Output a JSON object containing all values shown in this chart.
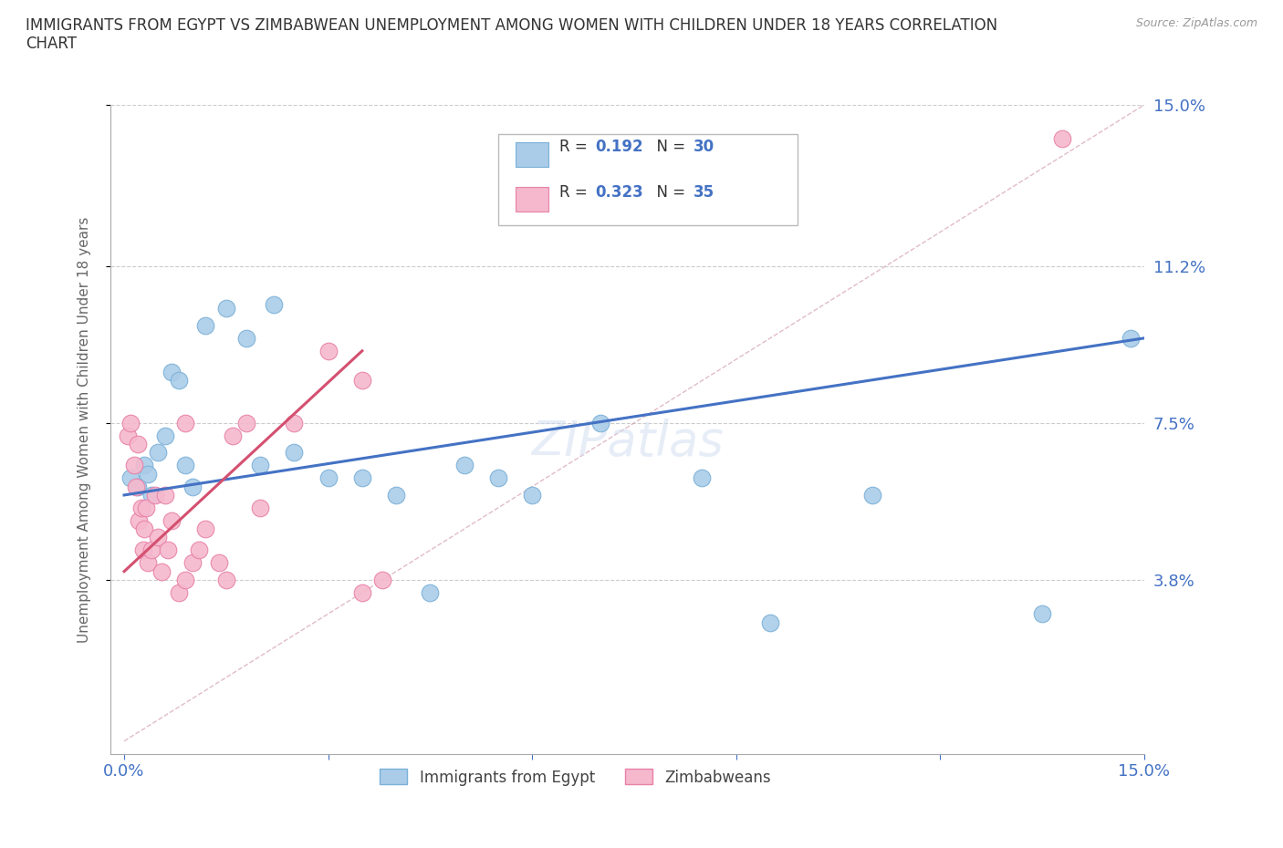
{
  "title": "IMMIGRANTS FROM EGYPT VS ZIMBABWEAN UNEMPLOYMENT AMONG WOMEN WITH CHILDREN UNDER 18 YEARS CORRELATION\nCHART",
  "source": "Source: ZipAtlas.com",
  "ylabel": "Unemployment Among Women with Children Under 18 years",
  "y_tick_values": [
    3.8,
    7.5,
    11.2,
    15.0
  ],
  "xlim": [
    0.0,
    15.0
  ],
  "ylim": [
    0.0,
    15.0
  ],
  "egypt_color": "#aacce8",
  "egypt_edge": "#7ab0d8",
  "zimb_color": "#f5b8cc",
  "zimb_edge": "#e880a8",
  "egypt_R": 0.192,
  "egypt_N": 30,
  "zimb_R": 0.323,
  "zimb_N": 35,
  "trend_diagonal_color": "#d4a0b0",
  "egypt_trend_color": "#4472c4",
  "zimb_trend_color": "#d45070",
  "bg_color": "#ffffff",
  "grid_color": "#cccccc",
  "title_color": "#333333",
  "tick_color_blue": "#4472c4",
  "R_color": "#4472c4",
  "N_color": "#4472c4",
  "egypt_scatter_x": [
    0.1,
    0.2,
    0.3,
    0.35,
    0.4,
    0.5,
    0.6,
    0.7,
    0.8,
    0.9,
    1.0,
    1.2,
    1.5,
    1.8,
    2.0,
    2.2,
    2.5,
    3.0,
    3.5,
    4.0,
    4.5,
    5.0,
    5.5,
    6.0,
    7.0,
    8.5,
    9.5,
    11.0,
    13.5,
    14.8
  ],
  "egypt_scatter_y": [
    6.2,
    6.0,
    6.5,
    6.3,
    5.8,
    6.8,
    7.2,
    8.7,
    8.5,
    6.5,
    6.0,
    9.8,
    10.2,
    9.5,
    6.5,
    10.3,
    6.8,
    6.2,
    6.2,
    5.8,
    3.5,
    6.5,
    6.2,
    5.8,
    7.5,
    6.2,
    2.8,
    5.8,
    3.0,
    9.5
  ],
  "zimb_scatter_x": [
    0.05,
    0.1,
    0.15,
    0.18,
    0.2,
    0.22,
    0.25,
    0.28,
    0.3,
    0.32,
    0.35,
    0.4,
    0.45,
    0.5,
    0.55,
    0.6,
    0.65,
    0.7,
    0.8,
    0.9,
    1.0,
    1.1,
    1.2,
    1.4,
    1.6,
    1.8,
    2.0,
    2.5,
    3.0,
    3.5,
    3.8,
    3.5,
    1.5,
    0.9,
    13.8
  ],
  "zimb_scatter_y": [
    7.2,
    7.5,
    6.5,
    6.0,
    7.0,
    5.2,
    5.5,
    4.5,
    5.0,
    5.5,
    4.2,
    4.5,
    5.8,
    4.8,
    4.0,
    5.8,
    4.5,
    5.2,
    3.5,
    3.8,
    4.2,
    4.5,
    5.0,
    4.2,
    7.2,
    7.5,
    5.5,
    7.5,
    9.2,
    8.5,
    3.8,
    3.5,
    3.8,
    7.5,
    14.2
  ]
}
